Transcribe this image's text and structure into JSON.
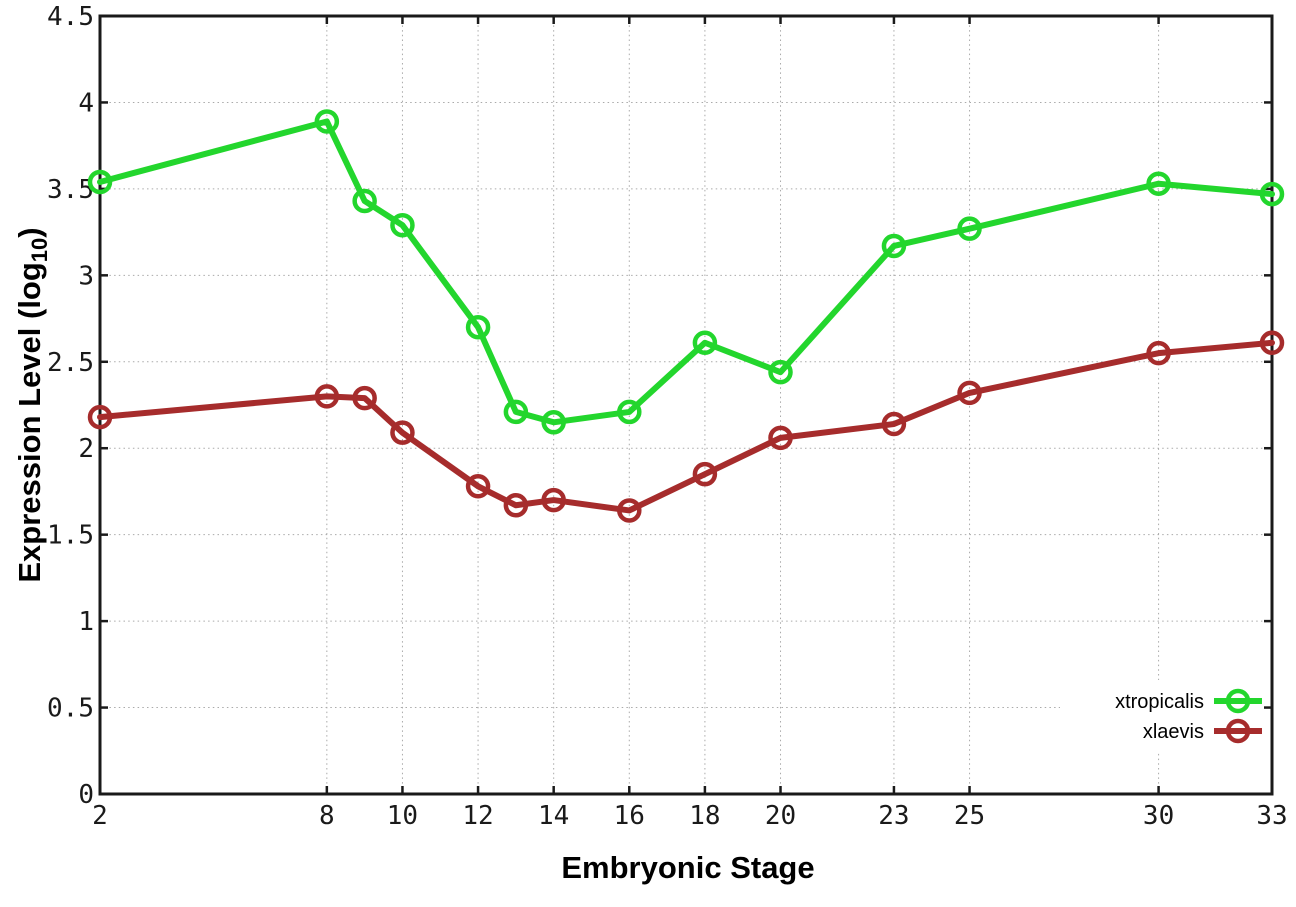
{
  "chart_data": {
    "type": "line",
    "title": "",
    "xlabel": "Embryonic Stage",
    "ylabel": "Expression Level (log10)",
    "ylabel_parts": {
      "prefix": "Expression Level (log",
      "sub": "10",
      "suffix": ")"
    },
    "x_range": [
      2,
      33
    ],
    "y_range": [
      0,
      4.5
    ],
    "x_ticks": [
      2,
      8,
      10,
      12,
      14,
      16,
      18,
      20,
      23,
      25,
      30,
      33
    ],
    "x_tick_labels": [
      "2",
      "8",
      "10",
      "12",
      "14",
      "16",
      "18",
      "20",
      "23",
      "25",
      "30",
      "33"
    ],
    "y_ticks": [
      0,
      0.5,
      1,
      1.5,
      2,
      2.5,
      3,
      3.5,
      4,
      4.5
    ],
    "y_tick_labels": [
      "0",
      "0.5",
      "1",
      "1.5",
      "2",
      "2.5",
      "3",
      "3.5",
      "4",
      "4.5"
    ],
    "grid": true,
    "legend_position": "bottom-right",
    "x": [
      2,
      8,
      9,
      10,
      12,
      13,
      14,
      16,
      18,
      20,
      23,
      25,
      30,
      33
    ],
    "series": [
      {
        "name": "xtropicalis",
        "color": "#23d62d",
        "values": [
          3.54,
          3.89,
          3.43,
          3.29,
          2.7,
          2.21,
          2.15,
          2.21,
          2.61,
          2.44,
          3.17,
          3.27,
          3.53,
          3.47
        ]
      },
      {
        "name": "xlaevis",
        "color": "#a62c2c",
        "values": [
          2.18,
          2.3,
          2.29,
          2.09,
          1.78,
          1.67,
          1.7,
          1.64,
          1.85,
          2.06,
          2.14,
          2.32,
          2.55,
          2.61
        ]
      }
    ],
    "colors": {
      "background": "#ffffff",
      "grid": "#aaaaaa",
      "axis": "#1a1a1a",
      "text": "#000000"
    }
  }
}
